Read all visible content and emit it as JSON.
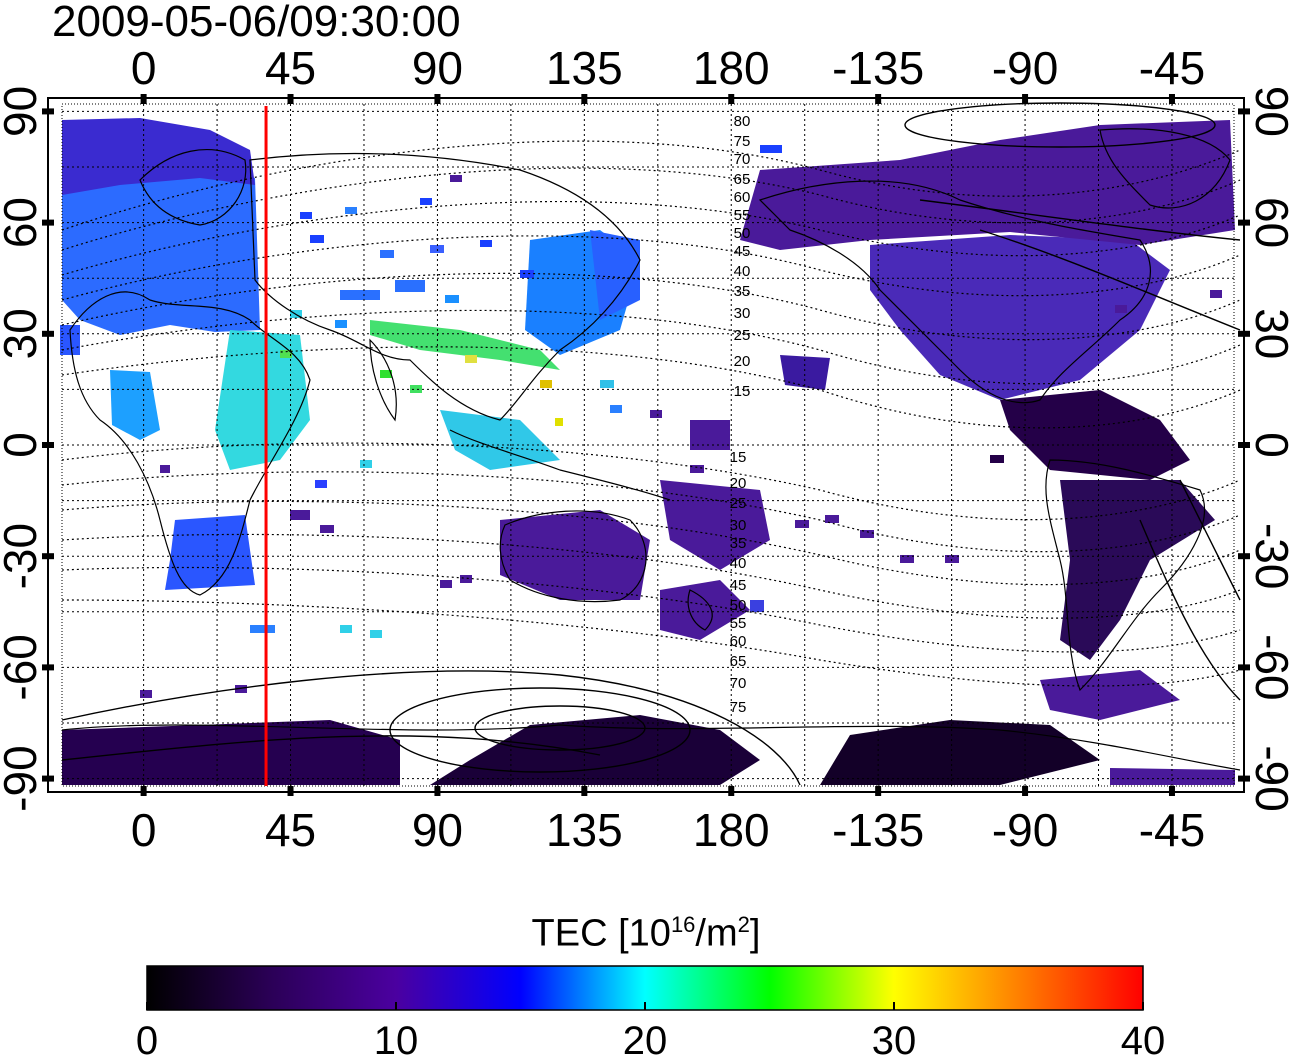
{
  "timestamp": "2009-05-06/09:30:00",
  "map": {
    "x_ticks": [
      {
        "lon": 0,
        "label": "0"
      },
      {
        "lon": 45,
        "label": "45"
      },
      {
        "lon": 90,
        "label": "90"
      },
      {
        "lon": 135,
        "label": "135"
      },
      {
        "lon": 180,
        "label": "180"
      },
      {
        "lon": 225,
        "label": "-135"
      },
      {
        "lon": 270,
        "label": "-90"
      },
      {
        "lon": 315,
        "label": "-45"
      }
    ],
    "y_ticks": [
      {
        "lat": 90,
        "label": "90"
      },
      {
        "lat": 60,
        "label": "60"
      },
      {
        "lat": 30,
        "label": "30"
      },
      {
        "lat": 0,
        "label": "0"
      },
      {
        "lat": -30,
        "label": "-30"
      },
      {
        "lat": -60,
        "label": "-60"
      },
      {
        "lat": -90,
        "label": "-90"
      }
    ],
    "x_range": [
      -25,
      334
    ],
    "y_range": [
      -92,
      92
    ],
    "grid": true,
    "marker_lon": 37.5,
    "marker_color": "#ff0000",
    "contour_labels": [
      "80",
      "75",
      "70",
      "65",
      "60",
      "55",
      "50",
      "45",
      "40",
      "35",
      "30",
      "25",
      "20",
      "15",
      "15",
      "20",
      "25",
      "30",
      "35",
      "40",
      "45",
      "50",
      "55",
      "60",
      "65",
      "70",
      "75"
    ]
  },
  "colorbar": {
    "title_prefix": "TEC  [10",
    "title_exp1": "16",
    "title_mid": "/m",
    "title_exp2": "2",
    "title_suffix": "]",
    "ticks": [
      "0",
      "10",
      "20",
      "30",
      "40"
    ],
    "range": [
      0,
      40
    ],
    "colors": [
      "#000000",
      "#2b0057",
      "#4b00a0",
      "#0000ff",
      "#00ffff",
      "#00ff00",
      "#ffff00",
      "#ff8000",
      "#ff0000"
    ]
  }
}
